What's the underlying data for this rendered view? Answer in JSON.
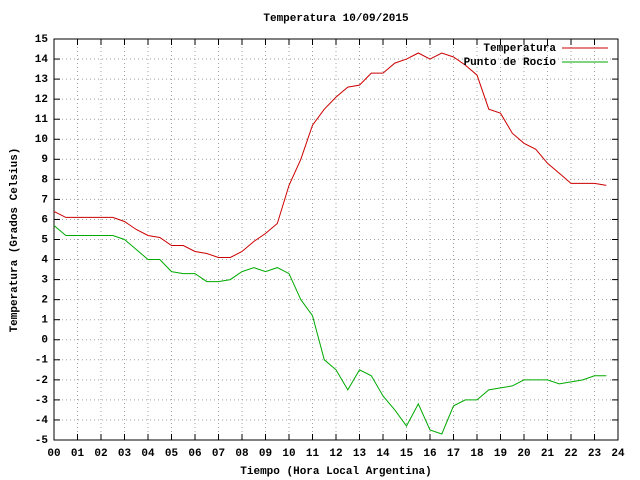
{
  "chart_data": {
    "type": "line",
    "title": "Temperatura 10/09/2015",
    "x_label": "Tiempo (Hora Local Argentina)",
    "y_label": "Temperatura (Grados Celsius)",
    "x": [
      0,
      0.5,
      1,
      1.5,
      2,
      2.5,
      3,
      3.5,
      4,
      4.5,
      5,
      5.5,
      6,
      6.5,
      7,
      7.5,
      8,
      8.5,
      9,
      9.5,
      10,
      10.5,
      11,
      11.5,
      12,
      12.5,
      13,
      13.5,
      14,
      14.5,
      15,
      15.5,
      16,
      16.5,
      17,
      17.5,
      18,
      18.5,
      19,
      19.5,
      20,
      20.5,
      21,
      21.5,
      22,
      22.5,
      23,
      23.5
    ],
    "series": [
      {
        "name": "Temperatura",
        "color": "#cc0000",
        "values": [
          6.4,
          6.1,
          6.1,
          6.1,
          6.1,
          6.1,
          5.9,
          5.5,
          5.2,
          5.1,
          4.7,
          4.7,
          4.4,
          4.3,
          4.1,
          4.1,
          4.4,
          4.9,
          5.3,
          5.8,
          7.7,
          9.0,
          10.7,
          11.5,
          12.1,
          12.6,
          12.7,
          13.3,
          13.3,
          13.8,
          14.0,
          14.3,
          14.0,
          14.3,
          14.1,
          13.7,
          13.2,
          11.5,
          11.3,
          10.3,
          9.8,
          9.5,
          8.8,
          8.3,
          7.8,
          7.8,
          7.8,
          7.7
        ]
      },
      {
        "name": "Punto de Rocío",
        "color": "#00aa00",
        "values": [
          5.7,
          5.2,
          5.2,
          5.2,
          5.2,
          5.2,
          5.0,
          4.5,
          4.0,
          4.0,
          3.4,
          3.3,
          3.3,
          2.9,
          2.9,
          3.0,
          3.4,
          3.6,
          3.4,
          3.6,
          3.3,
          2.0,
          1.2,
          -1.0,
          -1.5,
          -2.5,
          -1.5,
          -1.8,
          -2.8,
          -3.5,
          -4.3,
          -3.2,
          -4.5,
          -4.7,
          -3.3,
          -3.0,
          -3.0,
          -2.5,
          -2.4,
          -2.3,
          -2.0,
          -2.0,
          -2.0,
          -2.2,
          -2.1,
          -2.0,
          -1.8,
          -1.8
        ]
      }
    ],
    "xlim": [
      0,
      24
    ],
    "xticks": [
      {
        "value": 0,
        "label": "00"
      },
      {
        "value": 1,
        "label": "01"
      },
      {
        "value": 2,
        "label": "02"
      },
      {
        "value": 3,
        "label": "03"
      },
      {
        "value": 4,
        "label": "04"
      },
      {
        "value": 5,
        "label": "05"
      },
      {
        "value": 6,
        "label": "06"
      },
      {
        "value": 7,
        "label": "07"
      },
      {
        "value": 8,
        "label": "08"
      },
      {
        "value": 9,
        "label": "09"
      },
      10,
      11,
      12,
      13,
      14,
      15,
      16,
      17,
      18,
      19,
      20,
      21,
      22,
      23,
      24
    ],
    "ylim": [
      -5,
      15
    ],
    "yticks": [
      -5,
      -4,
      -3,
      -2,
      -1,
      0,
      1,
      2,
      3,
      4,
      5,
      6,
      7,
      8,
      9,
      10,
      11,
      12,
      13,
      14,
      15
    ],
    "grid": true,
    "legend": "top-right"
  }
}
